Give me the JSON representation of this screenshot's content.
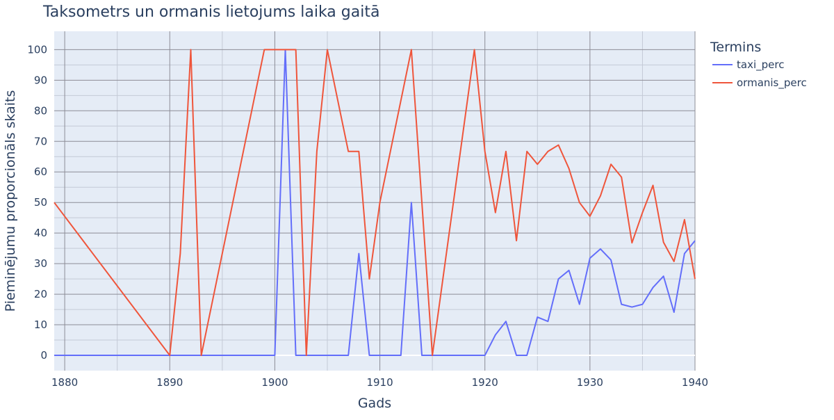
{
  "chart_data": {
    "type": "line",
    "title": "Taksometrs un ormanis lietojums laika gaitā",
    "xlabel": "Gads",
    "ylabel": "Pieminējumu proporcionāls skaits",
    "xlim": [
      1879,
      1940
    ],
    "ylim": [
      -5,
      106
    ],
    "x_ticks": [
      1880,
      1890,
      1900,
      1910,
      1920,
      1930,
      1940
    ],
    "y_ticks": [
      0,
      10,
      20,
      30,
      40,
      50,
      60,
      70,
      80,
      90,
      100
    ],
    "grid": true,
    "legend_title": "Termins",
    "legend_position": "right",
    "colors": {
      "plot_bg": "#e5ecf6",
      "grid_major": "#8c8c96",
      "grid_minor": "#c4cad6",
      "zero_line": "#ffffff"
    },
    "series": [
      {
        "name": "taxi_perc",
        "color": "#636efa",
        "points": [
          [
            1879,
            0
          ],
          [
            1890,
            0
          ],
          [
            1891,
            0
          ],
          [
            1892,
            0
          ],
          [
            1893,
            0
          ],
          [
            1899,
            0
          ],
          [
            1900,
            0
          ],
          [
            1901,
            100
          ],
          [
            1902,
            0
          ],
          [
            1903,
            0
          ],
          [
            1904,
            0
          ],
          [
            1905,
            0
          ],
          [
            1906,
            0
          ],
          [
            1907,
            0
          ],
          [
            1908,
            33.3
          ],
          [
            1909,
            0
          ],
          [
            1910,
            0
          ],
          [
            1911,
            0
          ],
          [
            1912,
            0
          ],
          [
            1913,
            50
          ],
          [
            1914,
            0
          ],
          [
            1915,
            0
          ],
          [
            1919,
            0
          ],
          [
            1920,
            0
          ],
          [
            1921,
            6.7
          ],
          [
            1922,
            11.1
          ],
          [
            1923,
            0
          ],
          [
            1924,
            0
          ],
          [
            1925,
            12.5
          ],
          [
            1926,
            11.1
          ],
          [
            1927,
            25
          ],
          [
            1928,
            27.8
          ],
          [
            1929,
            16.7
          ],
          [
            1930,
            31.8
          ],
          [
            1931,
            34.8
          ],
          [
            1932,
            31.2
          ],
          [
            1933,
            16.7
          ],
          [
            1934,
            15.8
          ],
          [
            1935,
            16.7
          ],
          [
            1936,
            22.2
          ],
          [
            1937,
            25.9
          ],
          [
            1938,
            14.1
          ],
          [
            1939,
            33.3
          ],
          [
            1940,
            37.5
          ]
        ]
      },
      {
        "name": "ormanis_perc",
        "color": "#ef553b",
        "points": [
          [
            1879,
            50
          ],
          [
            1890,
            0
          ],
          [
            1891,
            33.3
          ],
          [
            1892,
            100
          ],
          [
            1893,
            0
          ],
          [
            1899,
            100
          ],
          [
            1900,
            100
          ],
          [
            1901,
            100
          ],
          [
            1902,
            100
          ],
          [
            1903,
            0
          ],
          [
            1904,
            66.7
          ],
          [
            1905,
            100
          ],
          [
            1906,
            83.3
          ],
          [
            1907,
            66.7
          ],
          [
            1908,
            66.7
          ],
          [
            1909,
            25
          ],
          [
            1910,
            50
          ],
          [
            1913,
            100
          ],
          [
            1915,
            0
          ],
          [
            1919,
            100
          ],
          [
            1920,
            66.7
          ],
          [
            1921,
            46.7
          ],
          [
            1922,
            66.7
          ],
          [
            1923,
            37.5
          ],
          [
            1924,
            66.7
          ],
          [
            1925,
            62.5
          ],
          [
            1926,
            66.7
          ],
          [
            1927,
            68.8
          ],
          [
            1928,
            61.1
          ],
          [
            1929,
            50
          ],
          [
            1930,
            45.5
          ],
          [
            1931,
            52.2
          ],
          [
            1932,
            62.5
          ],
          [
            1933,
            58.3
          ],
          [
            1934,
            36.8
          ],
          [
            1935,
            46.7
          ],
          [
            1936,
            55.6
          ],
          [
            1937,
            37
          ],
          [
            1938,
            30.7
          ],
          [
            1939,
            44.4
          ],
          [
            1940,
            25
          ]
        ]
      }
    ]
  }
}
